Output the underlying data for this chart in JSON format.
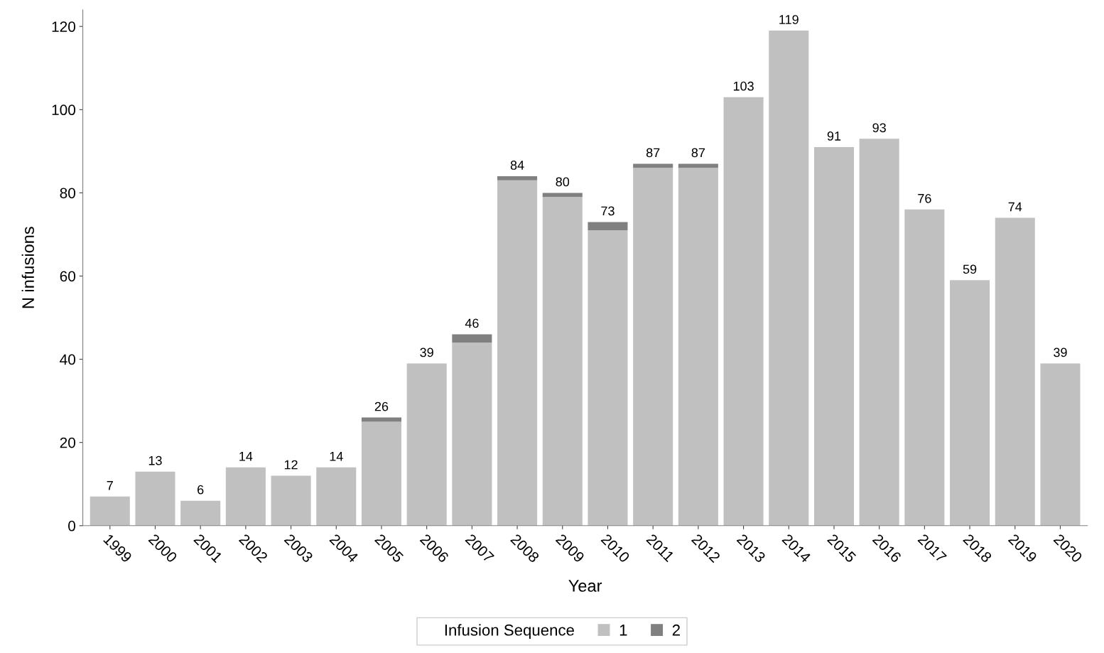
{
  "chart_data": {
    "type": "bar",
    "stacked": true,
    "xlabel": "Year",
    "ylabel": "N infusions",
    "legend_title": "Infusion Sequence",
    "legend": "bottom",
    "grid": false,
    "categories": [
      "1999",
      "2000",
      "2001",
      "2002",
      "2003",
      "2004",
      "2005",
      "2006",
      "2007",
      "2008",
      "2009",
      "2010",
      "2011",
      "2012",
      "2013",
      "2014",
      "2015",
      "2016",
      "2017",
      "2018",
      "2019",
      "2020"
    ],
    "series": [
      {
        "name": "1",
        "color": "#c0c0c0",
        "values": [
          7,
          13,
          6,
          14,
          12,
          14,
          25,
          39,
          44,
          83,
          79,
          71,
          86,
          86,
          103,
          119,
          91,
          93,
          76,
          59,
          74,
          39
        ]
      },
      {
        "name": "2",
        "color": "#808080",
        "values": [
          null,
          null,
          null,
          null,
          null,
          null,
          1,
          null,
          2,
          1,
          1,
          2,
          1,
          1,
          null,
          null,
          null,
          null,
          null,
          null,
          null,
          null
        ]
      }
    ],
    "totals": [
      "7",
      "13",
      "6",
      "14",
      "12",
      "14",
      "26",
      "39",
      "46",
      "84",
      "80",
      "73",
      "87",
      "87",
      "103",
      "119",
      "91",
      "93",
      "76",
      "59",
      "74",
      "39"
    ],
    "ylim": [
      0,
      124
    ],
    "yticks": [
      0,
      20,
      40,
      60,
      80,
      100,
      120
    ]
  }
}
